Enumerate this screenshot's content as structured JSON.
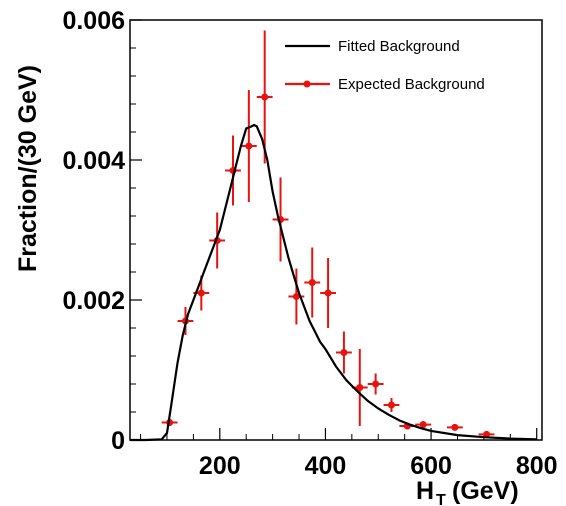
{
  "chart_data": {
    "type": "line",
    "title": "",
    "xlabel": "H",
    "xlabel_sub": "T",
    "xlabel_unit": "(GeV)",
    "ylabel": "Fraction/(30 GeV)",
    "xlim": [
      30,
      810
    ],
    "ylim": [
      0,
      0.006
    ],
    "x_ticks": [
      200,
      400,
      600,
      800
    ],
    "x_tick_labels": [
      "200",
      "400",
      "600",
      "800"
    ],
    "y_ticks": [
      0,
      0.002,
      0.004,
      0.006
    ],
    "y_tick_labels": [
      "0",
      "0.002",
      "0.004",
      "0.006"
    ],
    "legend_position": "top-right",
    "colors": {
      "fitted": "#000000",
      "expected": "#e8130f"
    },
    "series": [
      {
        "name": "Fitted Background",
        "style": "line",
        "x": [
          30,
          60,
          90,
          100,
          110,
          120,
          130,
          140,
          150,
          160,
          170,
          180,
          190,
          200,
          210,
          220,
          230,
          240,
          250,
          260,
          265,
          270,
          280,
          290,
          300,
          310,
          320,
          330,
          340,
          350,
          360,
          370,
          380,
          390,
          400,
          420,
          440,
          460,
          480,
          500,
          520,
          540,
          560,
          580,
          600,
          650,
          700,
          750,
          800
        ],
        "y": [
          0,
          0,
          1e-05,
          0.0001,
          0.0006,
          0.0011,
          0.0015,
          0.0018,
          0.002,
          0.0022,
          0.0024,
          0.0026,
          0.0028,
          0.003,
          0.0033,
          0.0036,
          0.0039,
          0.0042,
          0.00445,
          0.00448,
          0.0045,
          0.00448,
          0.0043,
          0.004,
          0.00355,
          0.0032,
          0.0029,
          0.0026,
          0.00235,
          0.0021,
          0.0019,
          0.0017,
          0.00155,
          0.0014,
          0.0013,
          0.00105,
          0.00085,
          0.0007,
          0.00056,
          0.00045,
          0.00036,
          0.00028,
          0.00022,
          0.00017,
          0.00013,
          7e-05,
          4e-05,
          2e-05,
          1e-05
        ]
      },
      {
        "name": "Expected Background",
        "style": "points",
        "x": [
          105,
          135,
          165,
          195,
          225,
          255,
          285,
          315,
          345,
          375,
          405,
          435,
          465,
          495,
          525,
          555,
          585,
          645,
          705
        ],
        "y": [
          0.00025,
          0.0017,
          0.0021,
          0.00285,
          0.00385,
          0.0042,
          0.0049,
          0.00315,
          0.00205,
          0.00225,
          0.0021,
          0.00125,
          0.00075,
          0.0008,
          0.0005,
          0.0002,
          0.00022,
          0.00018,
          8e-05
        ],
        "y_err": [
          5e-05,
          0.0002,
          0.00025,
          0.0004,
          0.0005,
          0.0008,
          0.00095,
          0.0006,
          0.0004,
          0.0005,
          0.0005,
          0.0003,
          0.00055,
          0.00015,
          0.0001,
          5e-05,
          5e-05,
          4e-05,
          2e-05
        ],
        "x_err": 15
      }
    ]
  }
}
